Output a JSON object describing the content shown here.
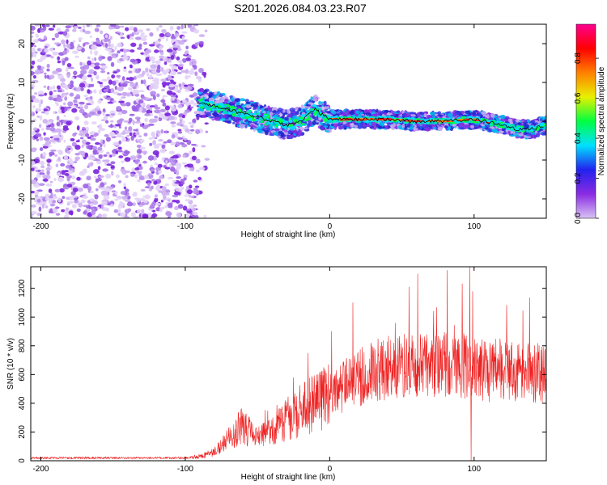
{
  "title": "S201.2026.084.03.23.R07",
  "chart_data": [
    {
      "type": "heatmap",
      "title": "S201.2026.084.03.23.R07",
      "xlabel": "Height of straight line (km)",
      "ylabel": "Frequency (Hz)",
      "xlim": [
        -207,
        150
      ],
      "ylim": [
        -25,
        25
      ],
      "xticks": [
        -200,
        -100,
        0,
        100
      ],
      "yticks": [
        -20,
        -10,
        0,
        10,
        20
      ],
      "noise_region": [
        -207,
        -92
      ],
      "signal_ridge": {
        "x": [
          -92,
          -80,
          -70,
          -60,
          -50,
          -40,
          -30,
          -20,
          -10,
          0,
          20,
          40,
          60,
          80,
          100,
          120,
          130,
          140,
          150
        ],
        "frequency_hz": [
          5,
          4,
          3,
          2,
          1,
          0,
          -1,
          0,
          3,
          0.5,
          0.5,
          0.5,
          0,
          0,
          0.5,
          -1,
          -2,
          -2,
          -1
        ]
      },
      "colorbar": {
        "label": "Normalized spectral amplitude",
        "ticks": [
          0.0,
          0.2,
          0.4,
          0.6,
          0.8
        ],
        "tick_labels": [
          "0.0",
          "0.2",
          "0.4",
          "0.6",
          "0.8"
        ],
        "range": [
          0,
          0.97
        ],
        "colors": [
          "#d9c4f4",
          "#8a2be2",
          "#2222ee",
          "#00e0ff",
          "#00ff40",
          "#e8f000",
          "#ff8000",
          "#ff0000",
          "#ff0090"
        ]
      },
      "line_color": "#000000"
    },
    {
      "type": "line",
      "xlabel": "Height of straight line (km)",
      "ylabel": "SNR (10 * v/v)",
      "xlim": [
        -207,
        150
      ],
      "ylim": [
        0,
        1350
      ],
      "xticks": [
        -200,
        -100,
        0,
        100
      ],
      "yticks": [
        0,
        200,
        400,
        600,
        800,
        1000,
        1200
      ],
      "series": [
        {
          "name": "SNR",
          "color": "#ee2222",
          "envelope_x": [
            -207,
            -100,
            -90,
            -80,
            -70,
            -60,
            -50,
            -40,
            -30,
            -20,
            -10,
            0,
            10,
            20,
            30,
            40,
            60,
            80,
            100,
            110,
            120,
            130,
            140,
            150
          ],
          "envelope_y": [
            20,
            20,
            30,
            60,
            150,
            250,
            150,
            200,
            300,
            350,
            400,
            450,
            520,
            580,
            620,
            650,
            670,
            680,
            650,
            620,
            640,
            630,
            620,
            600
          ],
          "spikes_x": [
            -62,
            -15,
            97,
            98,
            99
          ],
          "spikes_y": [
            300,
            750,
            1350,
            0,
            1180
          ]
        }
      ]
    }
  ]
}
